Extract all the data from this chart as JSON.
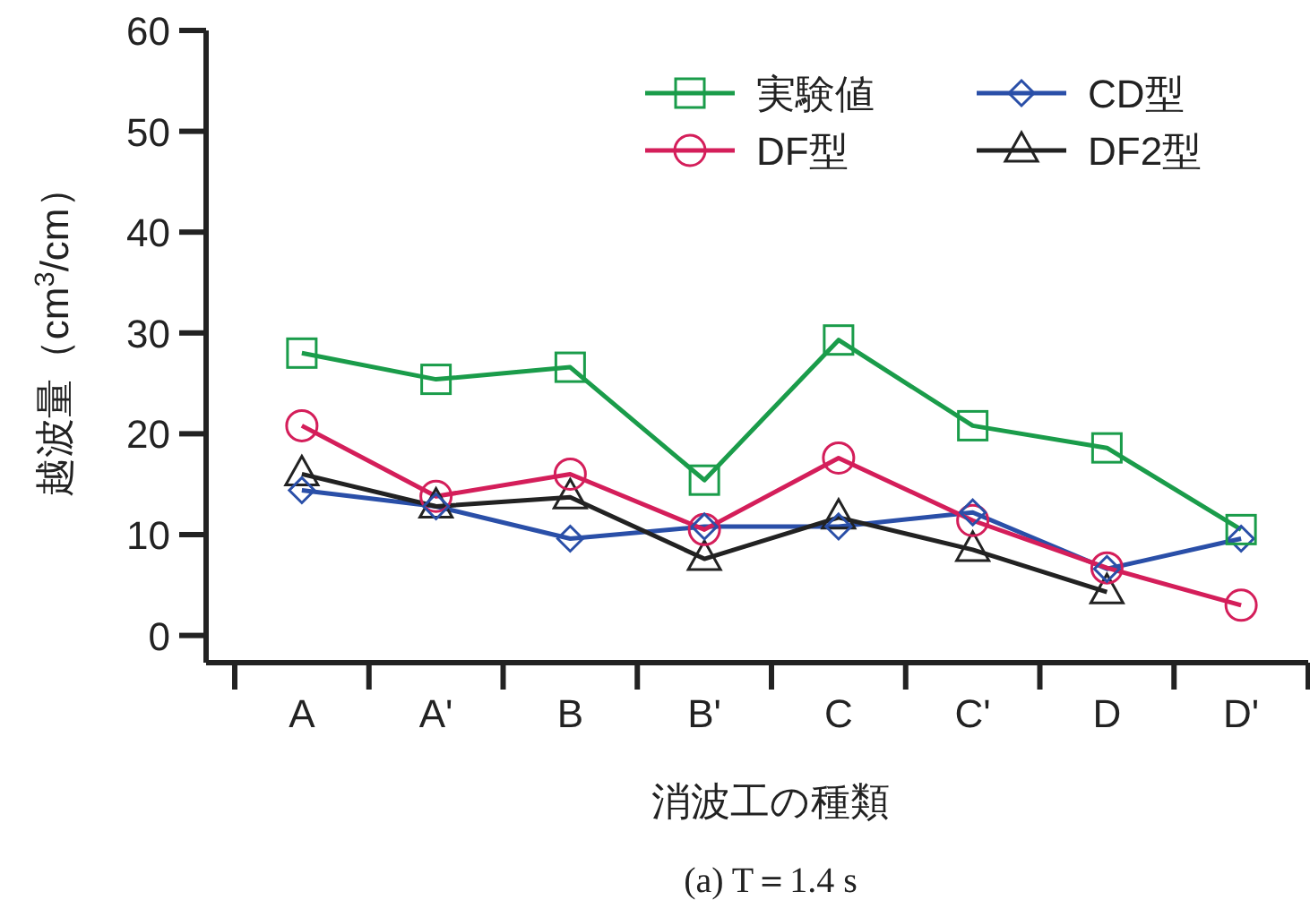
{
  "chart_data": {
    "type": "line",
    "xlabel": "消波工の種類",
    "ylabel": "越波量（cm$^{3}$/cm）",
    "annotations": [
      "(a) T＝1.4 s"
    ],
    "categories": [
      "A",
      "A'",
      "B",
      "B'",
      "C",
      "C'",
      "D",
      "D'"
    ],
    "ylim": [
      -2.7,
      60
    ],
    "yticks": [
      0,
      10,
      20,
      30,
      40,
      50,
      60
    ],
    "grid": false,
    "legend": "top right",
    "series": [
      {
        "name": "実験値",
        "color": "#1a9c4a",
        "marker": "square",
        "values": [
          28.0,
          25.4,
          26.6,
          15.4,
          29.3,
          20.8,
          18.6,
          10.5
        ]
      },
      {
        "name": "CD型",
        "color": "#2a4fa8",
        "marker": "diamond",
        "values": [
          14.4,
          12.8,
          9.6,
          10.8,
          10.8,
          12.2,
          6.6,
          9.6
        ]
      },
      {
        "name": "DF型",
        "color": "#d41e5a",
        "marker": "circle",
        "values": [
          20.8,
          13.8,
          16.0,
          10.5,
          17.6,
          11.4,
          6.7,
          3.0
        ]
      },
      {
        "name": "DF2型",
        "color": "#222222",
        "marker": "triangle",
        "values": [
          16.0,
          12.8,
          13.7,
          7.6,
          11.7,
          8.5,
          4.3,
          null
        ]
      }
    ]
  }
}
